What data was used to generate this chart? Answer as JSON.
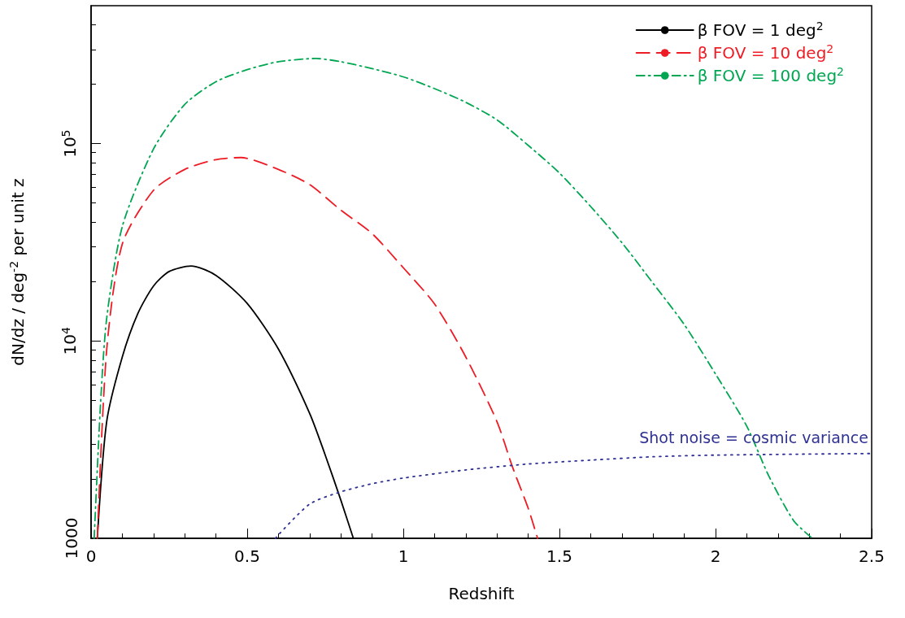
{
  "chart_data": {
    "type": "line",
    "xlabel": "Redshift",
    "ylabel": "dN/dz / deg$^{-2}$ per unit z",
    "xlim": [
      0,
      2.5
    ],
    "xticks": [
      0,
      0.5,
      1,
      1.5,
      2,
      2.5
    ],
    "ylim": [
      1000,
      500000
    ],
    "yticks": [
      1000,
      {
        "value": 10000,
        "label": "10$^{4}$"
      },
      {
        "value": 100000,
        "label": "10$^{5}$"
      }
    ],
    "log": "y",
    "grid": false,
    "legend": "top right",
    "marker": "none",
    "series": [
      {
        "name": "β FOV = 1 deg$^{2}$",
        "color": "#000000",
        "line_style": "solid",
        "x": [
          0.02,
          0.05,
          0.1,
          0.15,
          0.2,
          0.25,
          0.32,
          0.4,
          0.5,
          0.6,
          0.7,
          0.75,
          0.8,
          0.84
        ],
        "values": [
          1000,
          3900,
          8300,
          13800,
          19000,
          22500,
          24000,
          21500,
          15500,
          9100,
          4300,
          2640,
          1560,
          1000
        ]
      },
      {
        "name": "β FOV = 10 deg$^{2}$",
        "color": "#ee1c25",
        "line_style": "dashed",
        "x": [
          0.02,
          0.05,
          0.1,
          0.2,
          0.3,
          0.4,
          0.48,
          0.6,
          0.7,
          0.8,
          0.9,
          1.0,
          1.1,
          1.2,
          1.3,
          1.35,
          1.4,
          1.43
        ],
        "values": [
          1000,
          9000,
          31000,
          58000,
          74000,
          83000,
          85000,
          74000,
          62000,
          46000,
          35000,
          23500,
          15400,
          8300,
          3900,
          2290,
          1420,
          1000
        ]
      },
      {
        "name": "β FOV = 100 deg$^{2}$",
        "color": "#00a651",
        "line_style": "dashdot",
        "x": [
          0.01,
          0.03,
          0.05,
          0.1,
          0.2,
          0.3,
          0.4,
          0.5,
          0.6,
          0.72,
          0.8,
          0.9,
          1.0,
          1.1,
          1.2,
          1.3,
          1.4,
          1.5,
          1.6,
          1.7,
          1.8,
          1.9,
          2.0,
          2.1,
          2.17,
          2.25,
          2.31
        ],
        "values": [
          1000,
          4700,
          13000,
          38000,
          94000,
          158000,
          206000,
          237000,
          260000,
          270000,
          260000,
          240000,
          218000,
          190000,
          162000,
          132000,
          98000,
          71000,
          48000,
          31500,
          19600,
          12100,
          6800,
          3700,
          2080,
          1230,
          1000
        ]
      },
      {
        "name": "Shot noise = cosmic variance",
        "color": "#2e3192",
        "line_style": "dotted",
        "x": [
          0.59,
          0.7,
          0.8,
          0.9,
          1.0,
          1.2,
          1.4,
          1.6,
          1.8,
          2.0,
          2.5
        ],
        "values": [
          1000,
          1490,
          1720,
          1890,
          2020,
          2220,
          2380,
          2490,
          2590,
          2640,
          2690
        ]
      }
    ]
  }
}
